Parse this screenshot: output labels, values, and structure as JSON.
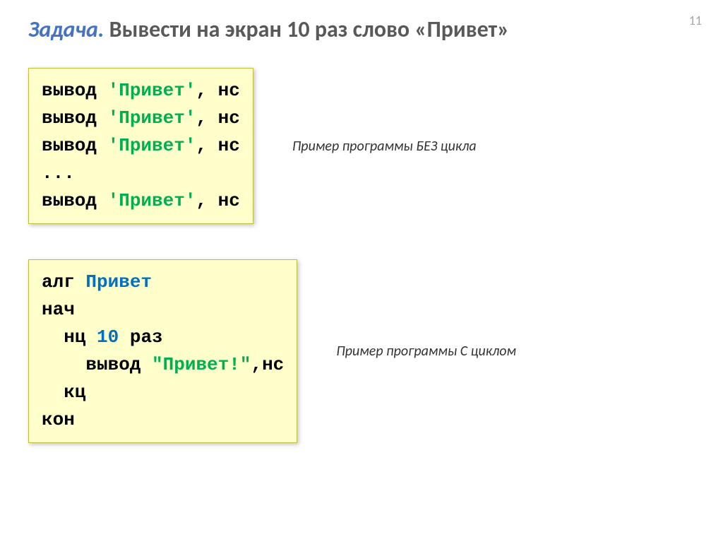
{
  "page_number": "11",
  "title_prefix": "Задача.",
  "title_rest": " Вывести на экран 10 раз слово «Привет»",
  "caption1": "Пример программы БЕЗ цикла",
  "caption2": "Пример программы С циклом",
  "code1": {
    "l1a": "вывод ",
    "l1b": "'Привет'",
    "l1c": ", нс",
    "ellipsis": "..."
  },
  "code2": {
    "alg": "алг ",
    "progname": "Привет",
    "nach": "нач",
    "nc_prefix": "  нц ",
    "nc_num": "10",
    "nc_suffix": " раз",
    "out_prefix": "    вывод ",
    "out_str": "\"Привет!\"",
    "out_suffix": ",нс",
    "kc": "  кц",
    "kon": "кон"
  },
  "colors": {
    "code_bg": "#ffffcc",
    "code_border": "#c0c040",
    "title_gray": "#595959",
    "title_blue": "#4472c4",
    "kw_blue": "#0070c0",
    "kw_green": "#00b050",
    "page_num": "#a6a6a6"
  }
}
